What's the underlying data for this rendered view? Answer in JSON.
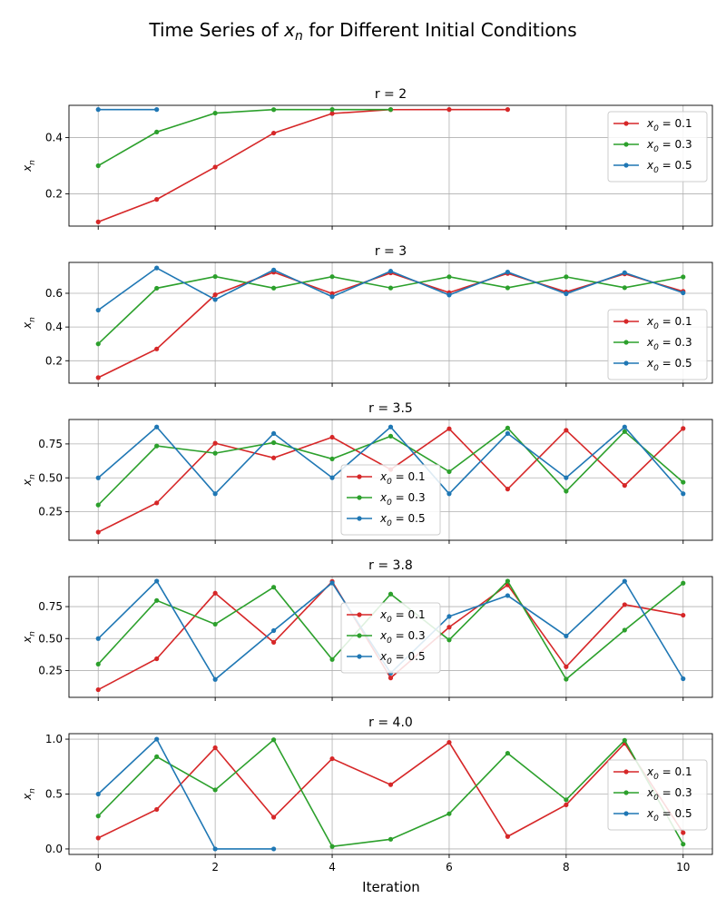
{
  "figure": {
    "title": "Time Series of x_n for Different Initial Conditions",
    "xlabel": "Iteration",
    "ylabel": "x_n"
  },
  "colors": {
    "x0_0.1": "#d62728",
    "x0_0.3": "#2ca02c",
    "x0_0.5": "#1f77b4",
    "grid": "#b0b0b0"
  },
  "legend_labels": [
    "x_0 = 0.1",
    "x_0 = 0.3",
    "x_0 = 0.5"
  ],
  "chart_data": [
    {
      "type": "line",
      "title": "r = 2",
      "xlim": [
        -0.5,
        10.5
      ],
      "ylim": [
        0.085,
        0.515
      ],
      "xticks": [
        0,
        2,
        4,
        6,
        8,
        10
      ],
      "yticks": [
        0.2,
        0.4
      ],
      "ytick_labels": [
        "0.2",
        "0.4"
      ],
      "grid": true,
      "legend": "upper-right",
      "series": [
        {
          "name": "x_0 = 0.1",
          "color": "#d62728",
          "x": [
            0,
            1,
            2,
            3,
            4,
            5,
            6,
            7
          ],
          "y": [
            0.1,
            0.18,
            0.2952,
            0.4161,
            0.4859,
            0.4996,
            0.5,
            0.5
          ]
        },
        {
          "name": "x_0 = 0.3",
          "color": "#2ca02c",
          "x": [
            0,
            1,
            2,
            3,
            4,
            5
          ],
          "y": [
            0.3,
            0.42,
            0.4872,
            0.4997,
            0.5,
            0.5
          ]
        },
        {
          "name": "x_0 = 0.5",
          "color": "#1f77b4",
          "x": [
            0,
            1
          ],
          "y": [
            0.5,
            0.5
          ]
        }
      ]
    },
    {
      "type": "line",
      "title": "r = 3",
      "xlim": [
        -0.5,
        10.5
      ],
      "ylim": [
        0.067,
        0.783
      ],
      "xticks": [
        0,
        2,
        4,
        6,
        8,
        10
      ],
      "yticks": [
        0.2,
        0.4,
        0.6
      ],
      "ytick_labels": [
        "0.2",
        "0.4",
        "0.6"
      ],
      "grid": true,
      "legend": "center-right",
      "series": [
        {
          "name": "x_0 = 0.1",
          "color": "#d62728",
          "x": [
            0,
            1,
            2,
            3,
            4,
            5,
            6,
            7,
            8,
            9,
            10
          ],
          "y": [
            0.1,
            0.27,
            0.5913,
            0.7249,
            0.5982,
            0.7207,
            0.6038,
            0.7176,
            0.6079,
            0.715,
            0.6113
          ]
        },
        {
          "name": "x_0 = 0.3",
          "color": "#2ca02c",
          "x": [
            0,
            1,
            2,
            3,
            4,
            5,
            6,
            7,
            8,
            9,
            10
          ],
          "y": [
            0.3,
            0.63,
            0.6993,
            0.6309,
            0.6986,
            0.6316,
            0.698,
            0.6324,
            0.6974,
            0.6331,
            0.6968
          ]
        },
        {
          "name": "x_0 = 0.5",
          "color": "#1f77b4",
          "x": [
            0,
            1,
            2,
            3,
            4,
            5,
            6,
            7,
            8,
            9,
            10
          ],
          "y": [
            0.5,
            0.75,
            0.5625,
            0.7383,
            0.5796,
            0.731,
            0.5898,
            0.7257,
            0.5972,
            0.7217,
            0.6025
          ]
        }
      ]
    },
    {
      "type": "line",
      "title": "r = 3.5",
      "xlim": [
        -0.5,
        10.5
      ],
      "ylim": [
        0.04,
        0.93
      ],
      "xticks": [
        0,
        2,
        4,
        6,
        8,
        10
      ],
      "yticks": [
        0.25,
        0.5,
        0.75
      ],
      "ytick_labels": [
        "0.25",
        "0.50",
        "0.75"
      ],
      "grid": true,
      "legend": "lower-center",
      "series": [
        {
          "name": "x_0 = 0.1",
          "color": "#d62728",
          "x": [
            0,
            1,
            2,
            3,
            4,
            5,
            6,
            7,
            8,
            9,
            10
          ],
          "y": [
            0.1,
            0.315,
            0.7552,
            0.6471,
            0.7993,
            0.5615,
            0.8618,
            0.417,
            0.8509,
            0.4441,
            0.864
          ]
        },
        {
          "name": "x_0 = 0.3",
          "color": "#2ca02c",
          "x": [
            0,
            1,
            2,
            3,
            4,
            5,
            6,
            7,
            8,
            9,
            10
          ],
          "y": [
            0.3,
            0.735,
            0.6817,
            0.7594,
            0.6395,
            0.8069,
            0.5454,
            0.8678,
            0.4016,
            0.8411,
            0.4677
          ]
        },
        {
          "name": "x_0 = 0.5",
          "color": "#1f77b4",
          "x": [
            0,
            1,
            2,
            3,
            4,
            5,
            6,
            7,
            8,
            9,
            10
          ],
          "y": [
            0.5,
            0.875,
            0.3828,
            0.8269,
            0.5009,
            0.875,
            0.3828,
            0.8269,
            0.5009,
            0.875,
            0.3828
          ]
        }
      ]
    },
    {
      "type": "line",
      "title": "r = 3.8",
      "xlim": [
        -0.5,
        10.5
      ],
      "ylim": [
        0.04,
        0.985
      ],
      "xticks": [
        0,
        2,
        4,
        6,
        8,
        10
      ],
      "yticks": [
        0.25,
        0.5,
        0.75
      ],
      "ytick_labels": [
        "0.25",
        "0.50",
        "0.75"
      ],
      "grid": true,
      "legend": "upper-center",
      "series": [
        {
          "name": "x_0 = 0.1",
          "color": "#d62728",
          "x": [
            0,
            1,
            2,
            3,
            4,
            5,
            6,
            7,
            8,
            9,
            10
          ],
          "y": [
            0.1,
            0.342,
            0.8551,
            0.4708,
            0.9467,
            0.1917,
            0.5888,
            0.9201,
            0.2795,
            0.7653,
            0.6826
          ]
        },
        {
          "name": "x_0 = 0.3",
          "color": "#2ca02c",
          "x": [
            0,
            1,
            2,
            3,
            4,
            5,
            6,
            7,
            8,
            9,
            10
          ],
          "y": [
            0.3,
            0.798,
            0.6125,
            0.9019,
            0.3363,
            0.8481,
            0.4894,
            0.9495,
            0.1821,
            0.566,
            0.9335
          ]
        },
        {
          "name": "x_0 = 0.5",
          "color": "#1f77b4",
          "x": [
            0,
            1,
            2,
            3,
            4,
            5,
            6,
            7,
            8,
            9,
            10
          ],
          "y": [
            0.5,
            0.95,
            0.1805,
            0.5621,
            0.9353,
            0.2299,
            0.673,
            0.8363,
            0.5202,
            0.9485,
            0.1856
          ]
        }
      ]
    },
    {
      "type": "line",
      "title": "r = 4.0",
      "xlim": [
        -0.5,
        10.5
      ],
      "ylim": [
        -0.05,
        1.05
      ],
      "xticks": [
        0,
        2,
        4,
        6,
        8,
        10
      ],
      "xtick_labels": [
        "0",
        "2",
        "4",
        "6",
        "8",
        "10"
      ],
      "yticks": [
        0.0,
        0.5,
        1.0
      ],
      "ytick_labels": [
        "0.0",
        "0.5",
        "1.0"
      ],
      "grid": true,
      "legend": "center-right",
      "series": [
        {
          "name": "x_0 = 0.1",
          "color": "#d62728",
          "x": [
            0,
            1,
            2,
            3,
            4,
            5,
            6,
            7,
            8,
            9,
            10
          ],
          "y": [
            0.1,
            0.36,
            0.9216,
            0.289,
            0.8219,
            0.5854,
            0.9708,
            0.1133,
            0.4019,
            0.9615,
            0.1478
          ]
        },
        {
          "name": "x_0 = 0.3",
          "color": "#2ca02c",
          "x": [
            0,
            1,
            2,
            3,
            4,
            5,
            6,
            7,
            8,
            9,
            10
          ],
          "y": [
            0.3,
            0.84,
            0.5376,
            0.9943,
            0.0225,
            0.0879,
            0.3208,
            0.8716,
            0.4476,
            0.989,
            0.0434
          ]
        },
        {
          "name": "x_0 = 0.5",
          "color": "#1f77b4",
          "x": [
            0,
            1,
            2,
            3
          ],
          "y": [
            0.5,
            1.0,
            0.0,
            0.0
          ]
        }
      ]
    }
  ]
}
